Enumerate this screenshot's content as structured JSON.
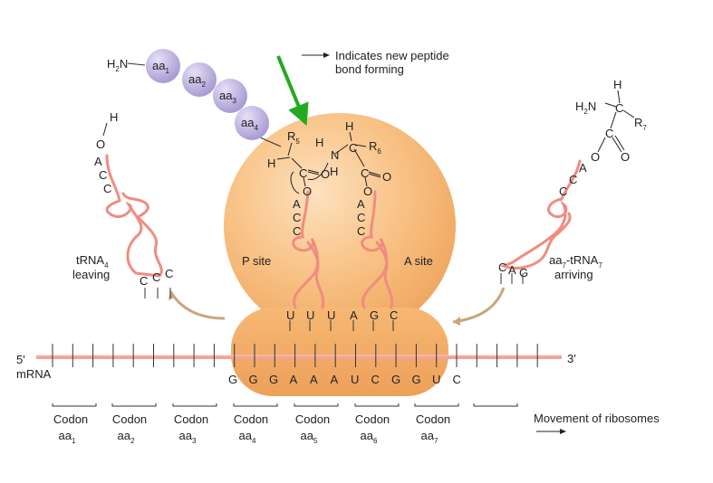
{
  "legend": {
    "line1": "Indicates new peptide",
    "line2": "bond forming"
  },
  "peptide": {
    "n_terminus": "H",
    "n_terminus_sub": "2",
    "n_terminus_atom": "N",
    "residues": [
      {
        "name": "aa",
        "sub": "1"
      },
      {
        "name": "aa",
        "sub": "2"
      },
      {
        "name": "aa",
        "sub": "3"
      },
      {
        "name": "aa",
        "sub": "4"
      }
    ]
  },
  "chemistry": {
    "r5": "R",
    "r5_sub": "5",
    "r6": "R",
    "r6_sub": "6",
    "r7": "R",
    "r7_sub": "7",
    "h": "H",
    "c": "C",
    "o": "O",
    "n": "N",
    "h2n": "H",
    "h2n_sub": "2",
    "h2n_atom": "N"
  },
  "trna_left": {
    "name": "tRNA",
    "sub": "4",
    "status": "leaving",
    "anticodon": [
      "C",
      "C",
      "C"
    ],
    "acceptor": [
      "A",
      "C",
      "C"
    ]
  },
  "trna_right": {
    "name_pre": "aa",
    "name_pre_sub": "7",
    "name_post": "-tRNA",
    "name_post_sub": "7",
    "status": "arriving",
    "anticodon": [
      "C",
      "A",
      "G"
    ],
    "acceptor": [
      "A",
      "C",
      "C"
    ]
  },
  "sites": {
    "p": "P site",
    "a": "A site"
  },
  "p_anticodon": [
    "U",
    "U",
    "U"
  ],
  "a_anticodon": [
    "A",
    "G",
    "C"
  ],
  "p_acceptor": [
    "A",
    "C",
    "C"
  ],
  "a_acceptor": [
    "A",
    "C",
    "C"
  ],
  "mrna": {
    "five": "5'",
    "three": "3'",
    "label": "mRNA",
    "sequence": [
      "G",
      "G",
      "G",
      "A",
      "A",
      "A",
      "U",
      "C",
      "G",
      "G",
      "U",
      "C"
    ]
  },
  "codons": [
    {
      "label": "Codon",
      "aa": "aa",
      "sub": "1"
    },
    {
      "label": "Codon",
      "aa": "aa",
      "sub": "2"
    },
    {
      "label": "Codon",
      "aa": "aa",
      "sub": "3"
    },
    {
      "label": "Codon",
      "aa": "aa",
      "sub": "4"
    },
    {
      "label": "Codon",
      "aa": "aa",
      "sub": "5"
    },
    {
      "label": "Codon",
      "aa": "aa",
      "sub": "6"
    },
    {
      "label": "Codon",
      "aa": "aa",
      "sub": "7"
    }
  ],
  "movement": "Movement of ribosomes",
  "colors": {
    "ribosome": "#F9C07F",
    "ribosome_edge": "#E9A35C",
    "trna": "#F08C80",
    "residue": "#B9AEDC",
    "arrow": "#22AA22",
    "mrna": "#F4A7A0"
  }
}
